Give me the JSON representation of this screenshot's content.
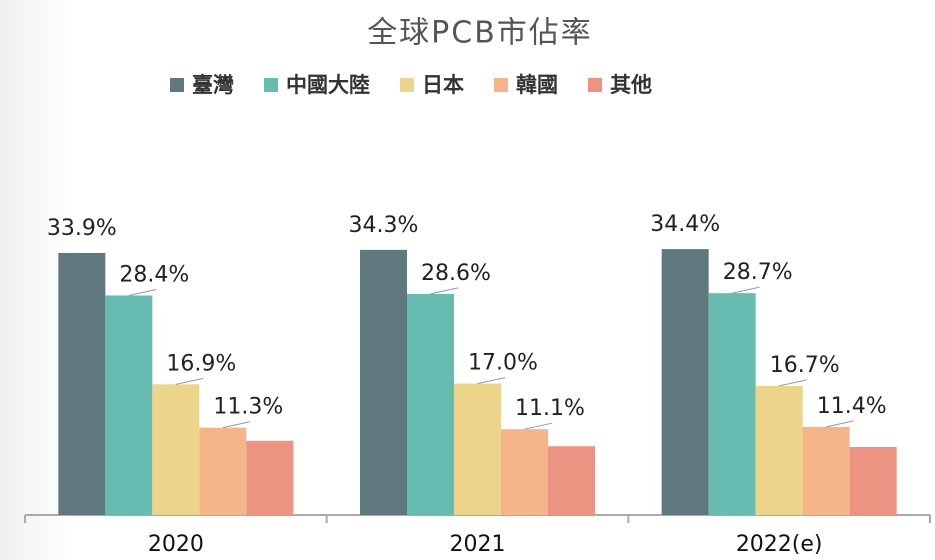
{
  "chart_data": {
    "type": "bar",
    "title": "全球PCB市佔率",
    "categories": [
      "2020",
      "2021",
      "2022(e)"
    ],
    "series": [
      {
        "name": "臺灣",
        "color": "#5f7880",
        "values": [
          33.9,
          34.3,
          34.4
        ],
        "value_labels": [
          "33.9%",
          "34.3%",
          "34.4%"
        ]
      },
      {
        "name": "中國大陸",
        "color": "#66bcb0",
        "values": [
          28.4,
          28.6,
          28.7
        ],
        "value_labels": [
          "28.4%",
          "28.6%",
          "28.7%"
        ]
      },
      {
        "name": "日本",
        "color": "#edd48b",
        "values": [
          16.9,
          17.0,
          16.7
        ],
        "value_labels": [
          "16.9%",
          "17.0%",
          "16.7%"
        ]
      },
      {
        "name": "韓國",
        "color": "#f5b48a",
        "values": [
          11.3,
          11.1,
          11.4
        ],
        "value_labels": [
          "11.3%",
          "11.1%",
          "11.4%"
        ]
      },
      {
        "name": "其他",
        "color": "#ec9481",
        "values": [
          9.6,
          8.9,
          8.8
        ]
      }
    ]
  }
}
